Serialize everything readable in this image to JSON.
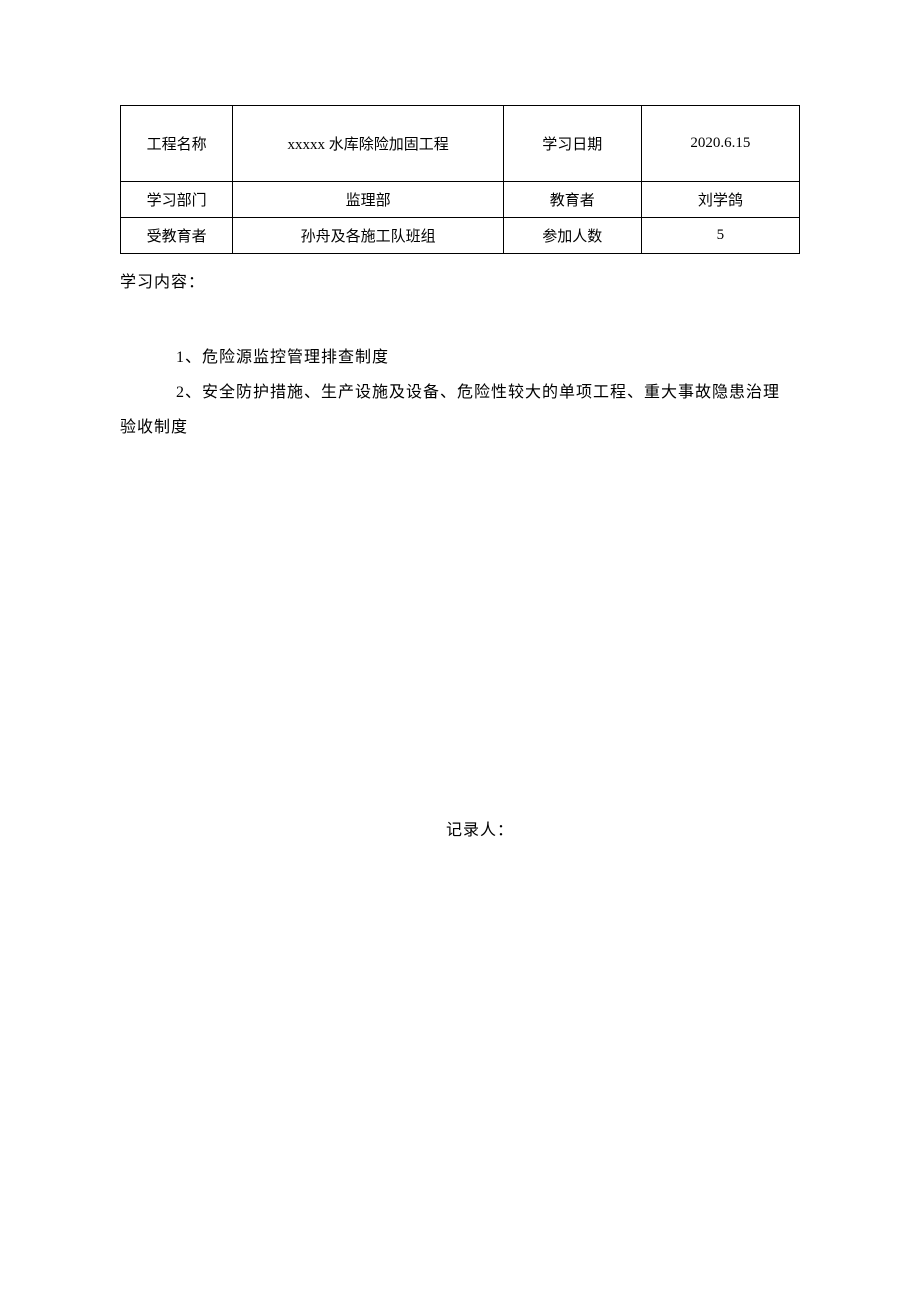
{
  "table": {
    "row1": {
      "label1": "工程名称",
      "value1": "xxxxx 水库除险加固工程",
      "label2": "学习日期",
      "value2": "2020.6.15"
    },
    "row2": {
      "label1": "学习部门",
      "value1": "监理部",
      "label2": "教育者",
      "value2": "刘学鸽"
    },
    "row3": {
      "label1": "受教育者",
      "value1": "孙舟及各施工队班组",
      "label2": "参加人数",
      "value2": "5"
    }
  },
  "content": {
    "label": "学习内容：",
    "item1": "1、危险源监控管理排查制度",
    "item2a": "2、安全防护措施、生产设施及设备、危险性较大的单项工程、重大事故隐患治理",
    "item2b": "验收制度"
  },
  "recorder": {
    "label": "记录人："
  },
  "colors": {
    "background": "#ffffff",
    "text": "#000000",
    "border": "#000000"
  }
}
